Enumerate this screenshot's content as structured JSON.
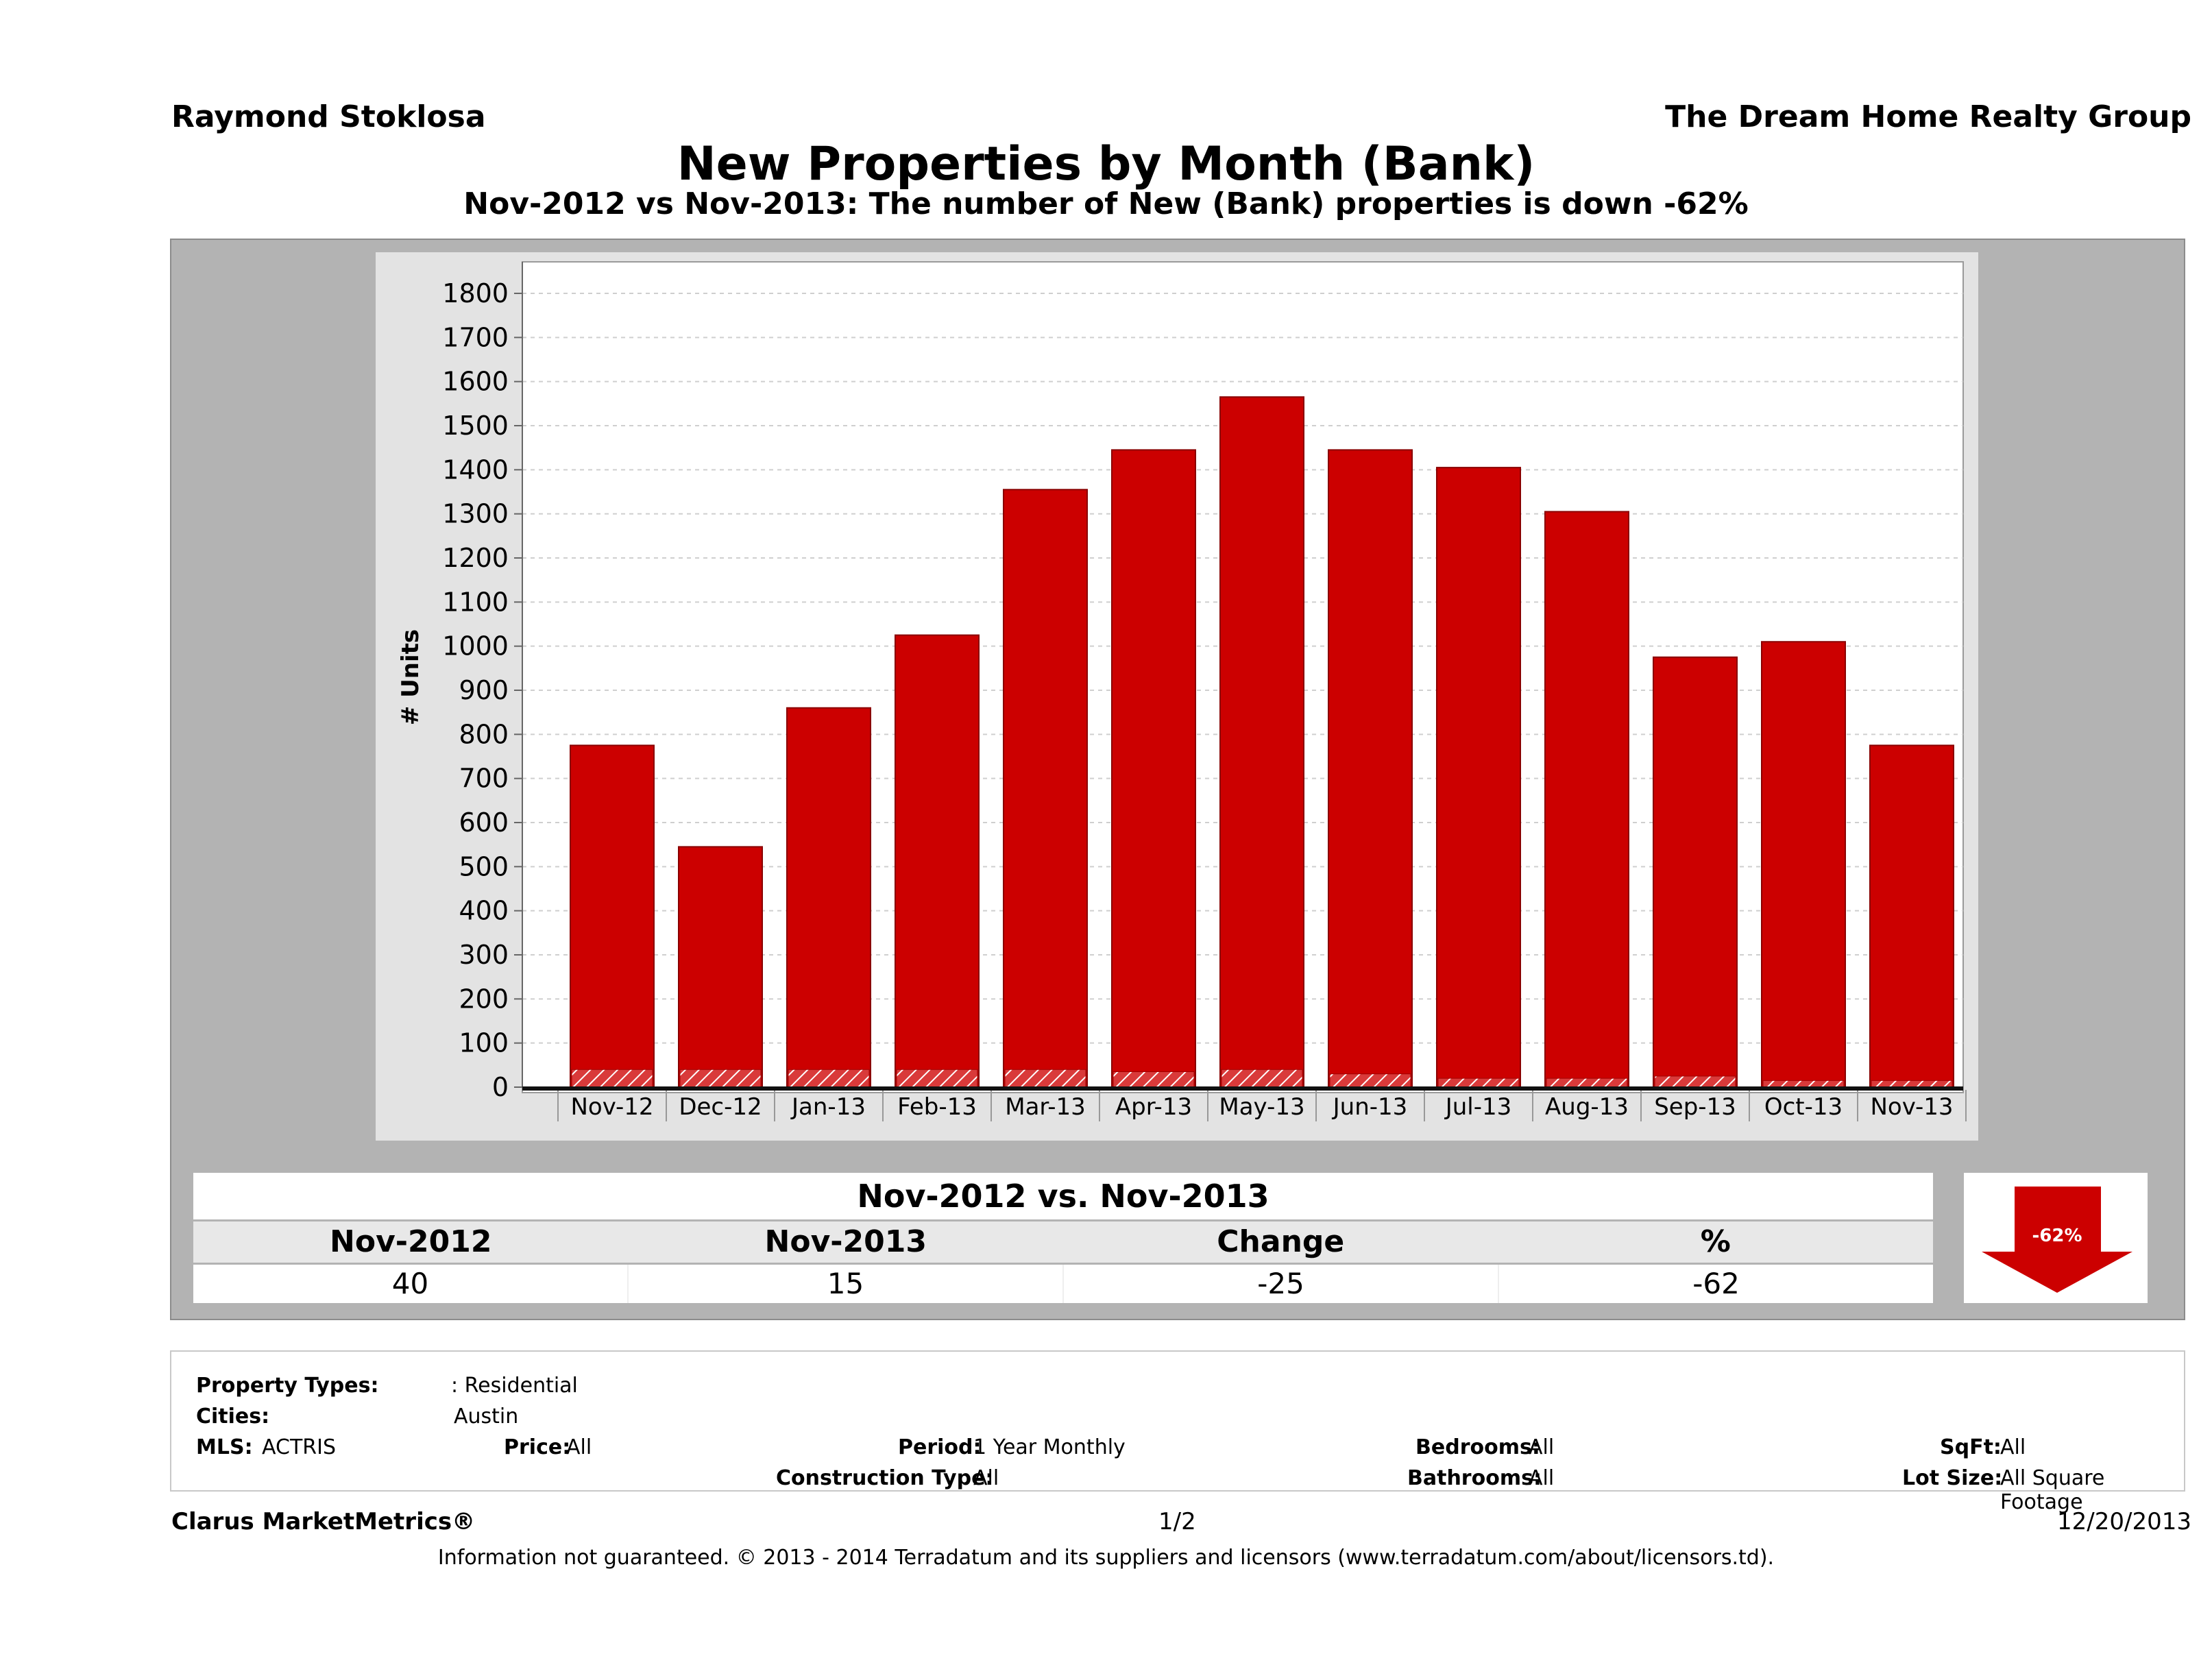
{
  "header": {
    "agent": "Raymond Stoklosa",
    "company": "The Dream Home Realty Group"
  },
  "chart_data": {
    "type": "bar",
    "title": "New Properties by Month (Bank)",
    "subtitle": "Nov-2012 vs Nov-2013: The number of New (Bank)  properties is down -62%",
    "ylabel": "# Units",
    "xlabel": "",
    "ylim": [
      0,
      1800
    ],
    "yticks": [
      0,
      100,
      200,
      300,
      400,
      500,
      600,
      700,
      800,
      900,
      1000,
      1100,
      1200,
      1300,
      1400,
      1500,
      1600,
      1700,
      1800
    ],
    "grid": true,
    "categories": [
      "Nov-12",
      "Dec-12",
      "Jan-13",
      "Feb-13",
      "Mar-13",
      "Apr-13",
      "May-13",
      "Jun-13",
      "Jul-13",
      "Aug-13",
      "Sep-13",
      "Oct-13",
      "Nov-13"
    ],
    "series": [
      {
        "values": [
          775,
          545,
          860,
          1025,
          1355,
          1445,
          1565,
          1445,
          1405,
          1305,
          975,
          1010,
          775
        ],
        "color": "#cc0000"
      },
      {
        "values": [
          40,
          40,
          40,
          40,
          40,
          35,
          40,
          30,
          20,
          20,
          25,
          15,
          15
        ],
        "color": "#d93a3a",
        "pattern": "hatched"
      }
    ]
  },
  "summary": {
    "title": "Nov-2012 vs. Nov-2013",
    "headers": [
      "Nov-2012",
      "Nov-2013",
      "Change",
      "%"
    ],
    "values": [
      "40",
      "15",
      "-25",
      "-62"
    ],
    "badge": "-62%",
    "badge_color": "#cc0000"
  },
  "filters": {
    "property_types_label": "Property Types:",
    "property_types_value": ": Residential",
    "cities_label": "Cities:",
    "cities_value": "Austin",
    "mls_label": "MLS:",
    "mls_value": "ACTRIS",
    "price_label": "Price:",
    "price_value": "All",
    "period_label": "Period:",
    "period_value": "1 Year Monthly",
    "construction_label": "Construction Type:",
    "construction_value": "All",
    "bedrooms_label": "Bedrooms:",
    "bedrooms_value": "All",
    "bathrooms_label": "Bathrooms:",
    "bathrooms_value": "All",
    "sqft_label": "SqFt:",
    "sqft_value": "All",
    "lotsize_label": "Lot Size:",
    "lotsize_value": "All Square Footage"
  },
  "footer": {
    "brand": "Clarus MarketMetrics®",
    "page": "1/2",
    "date": "12/20/2013",
    "disclaimer": "Information not guaranteed. © 2013 - 2014 Terradatum and its suppliers and licensors (www.terradatum.com/about/licensors.td)."
  }
}
